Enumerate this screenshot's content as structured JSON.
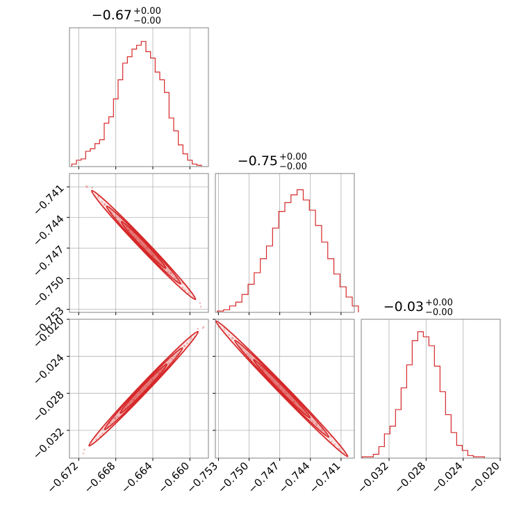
{
  "colors": {
    "series": "#d62728",
    "grid": "#b0b0b0",
    "frame": "#808080"
  },
  "chart_data": [
    {
      "type": "corner",
      "parameters": [
        {
          "title_main": "−0.67",
          "title_sup": "+0.00",
          "title_sub": "−0.00",
          "range": [
            -0.673,
            -0.658
          ],
          "ticks": [
            -0.672,
            -0.668,
            -0.664,
            -0.66
          ],
          "tick_labels": [
            "−0.672",
            "−0.668",
            "−0.664",
            "−0.660"
          ]
        },
        {
          "title_main": "−0.75",
          "title_sup": "+0.00",
          "title_sub": "−0.00",
          "range": [
            -0.7533,
            -0.7397
          ],
          "ticks": [
            -0.753,
            -0.75,
            -0.747,
            -0.744,
            -0.741
          ],
          "tick_labels": [
            "−0.753",
            "−0.750",
            "−0.747",
            "−0.744",
            "−0.741"
          ]
        },
        {
          "title_main": "−0.03",
          "title_sup": "+0.00",
          "title_sub": "−0.00",
          "range": [
            -0.035,
            -0.02
          ],
          "ticks": [
            -0.032,
            -0.028,
            -0.024,
            -0.02
          ],
          "tick_labels": [
            "−0.032",
            "−0.028",
            "−0.024",
            "−0.020"
          ]
        }
      ],
      "histograms": [
        {
          "param": 0,
          "type": "histogram",
          "bins": [
            [
              -0.6725,
              0.02
            ],
            [
              -0.672,
              0.05
            ],
            [
              -0.6715,
              0.06
            ],
            [
              -0.671,
              0.12
            ],
            [
              -0.6705,
              0.14
            ],
            [
              -0.67,
              0.18
            ],
            [
              -0.6695,
              0.21
            ],
            [
              -0.669,
              0.34
            ],
            [
              -0.6685,
              0.39
            ],
            [
              -0.668,
              0.53
            ],
            [
              -0.6675,
              0.68
            ],
            [
              -0.667,
              0.81
            ],
            [
              -0.6665,
              0.86
            ],
            [
              -0.666,
              0.92
            ],
            [
              -0.6655,
              0.95
            ],
            [
              -0.665,
              0.98
            ],
            [
              -0.6645,
              0.9
            ],
            [
              -0.664,
              0.85
            ],
            [
              -0.6635,
              0.74
            ],
            [
              -0.663,
              0.68
            ],
            [
              -0.6625,
              0.58
            ],
            [
              -0.662,
              0.38
            ],
            [
              -0.6615,
              0.28
            ],
            [
              -0.661,
              0.17
            ],
            [
              -0.6605,
              0.1
            ],
            [
              -0.66,
              0.05
            ],
            [
              -0.6595,
              0.02
            ],
            [
              -0.659,
              0.01
            ]
          ]
        },
        {
          "param": 1,
          "type": "histogram",
          "bins": [
            [
              -0.7528,
              0.01
            ],
            [
              -0.7522,
              0.02
            ],
            [
              -0.7516,
              0.05
            ],
            [
              -0.751,
              0.08
            ],
            [
              -0.7504,
              0.14
            ],
            [
              -0.7498,
              0.22
            ],
            [
              -0.7492,
              0.31
            ],
            [
              -0.7486,
              0.42
            ],
            [
              -0.748,
              0.52
            ],
            [
              -0.7474,
              0.66
            ],
            [
              -0.7468,
              0.79
            ],
            [
              -0.7462,
              0.86
            ],
            [
              -0.7456,
              0.92
            ],
            [
              -0.745,
              0.96
            ],
            [
              -0.7444,
              0.88
            ],
            [
              -0.7438,
              0.8
            ],
            [
              -0.7432,
              0.68
            ],
            [
              -0.7426,
              0.55
            ],
            [
              -0.742,
              0.42
            ],
            [
              -0.7414,
              0.3
            ],
            [
              -0.7408,
              0.2
            ],
            [
              -0.7402,
              0.12
            ],
            [
              -0.7396,
              0.05
            ]
          ]
        },
        {
          "param": 2,
          "type": "histogram",
          "bins": [
            [
              -0.0346,
              0.01
            ],
            [
              -0.034,
              0.01
            ],
            [
              -0.0334,
              0.03
            ],
            [
              -0.0328,
              0.09
            ],
            [
              -0.0322,
              0.19
            ],
            [
              -0.0316,
              0.25
            ],
            [
              -0.031,
              0.38
            ],
            [
              -0.0304,
              0.55
            ],
            [
              -0.0298,
              0.73
            ],
            [
              -0.0292,
              0.92
            ],
            [
              -0.0286,
              0.99
            ],
            [
              -0.028,
              0.95
            ],
            [
              -0.0274,
              0.88
            ],
            [
              -0.0268,
              0.72
            ],
            [
              -0.0262,
              0.52
            ],
            [
              -0.0256,
              0.34
            ],
            [
              -0.025,
              0.2
            ],
            [
              -0.0244,
              0.1
            ],
            [
              -0.0238,
              0.06
            ],
            [
              -0.0232,
              0.02
            ],
            [
              -0.0226,
              0.01
            ],
            [
              -0.022,
              0.01
            ]
          ]
        }
      ],
      "contours": [
        {
          "x_param": 0,
          "y_param": 1,
          "type": "contour",
          "center": [
            -0.665,
            -0.7467
          ],
          "slope": -1.05,
          "half_length": 0.004,
          "levels": [
            0.6,
            1.0,
            1.4
          ]
        },
        {
          "x_param": 0,
          "y_param": 2,
          "type": "contour",
          "center": [
            -0.665,
            -0.0275
          ],
          "slope": 1.05,
          "half_length": 0.0042,
          "levels": [
            0.6,
            1.0,
            1.4
          ]
        },
        {
          "x_param": 1,
          "y_param": 2,
          "type": "contour",
          "center": [
            -0.7468,
            -0.0275
          ],
          "slope": -1.03,
          "half_length": 0.0046,
          "levels": [
            0.6,
            1.0,
            1.4
          ]
        }
      ]
    }
  ]
}
